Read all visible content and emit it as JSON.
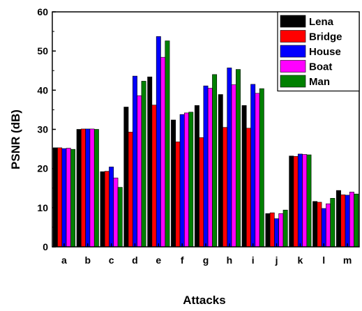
{
  "chart_data": {
    "type": "bar",
    "title": "",
    "xlabel": "Attacks",
    "ylabel": "PSNR (dB)",
    "ylim": [
      0,
      60
    ],
    "yticks": [
      0,
      10,
      20,
      30,
      40,
      50,
      60
    ],
    "grid": false,
    "legend_position": "top-right",
    "categories": [
      "a",
      "b",
      "c",
      "d",
      "e",
      "f",
      "g",
      "h",
      "i",
      "j",
      "k",
      "l",
      "m"
    ],
    "series": [
      {
        "name": "Lena",
        "color": "#000000",
        "values": [
          25.3,
          30.0,
          19.2,
          35.7,
          43.4,
          32.4,
          36.1,
          38.9,
          36.1,
          8.5,
          23.2,
          11.6,
          14.4
        ]
      },
      {
        "name": "Bridge",
        "color": "#ff0000",
        "values": [
          25.3,
          30.1,
          19.3,
          29.3,
          36.2,
          26.8,
          27.9,
          30.5,
          30.3,
          8.7,
          23.1,
          11.4,
          13.3
        ]
      },
      {
        "name": "House",
        "color": "#0000ff",
        "values": [
          25.1,
          30.1,
          20.4,
          43.6,
          53.7,
          33.8,
          41.1,
          45.7,
          41.5,
          7.2,
          23.7,
          9.8,
          13.2
        ]
      },
      {
        "name": "Boat",
        "color": "#ff00ff",
        "values": [
          25.2,
          30.1,
          17.6,
          38.6,
          48.4,
          34.2,
          40.5,
          41.4,
          39.2,
          8.5,
          23.6,
          11.0,
          14.0
        ]
      },
      {
        "name": "Man",
        "color": "#008000",
        "values": [
          24.9,
          30.0,
          15.2,
          42.3,
          52.6,
          34.4,
          44.0,
          45.3,
          40.4,
          9.4,
          23.5,
          12.4,
          13.5
        ]
      }
    ]
  }
}
